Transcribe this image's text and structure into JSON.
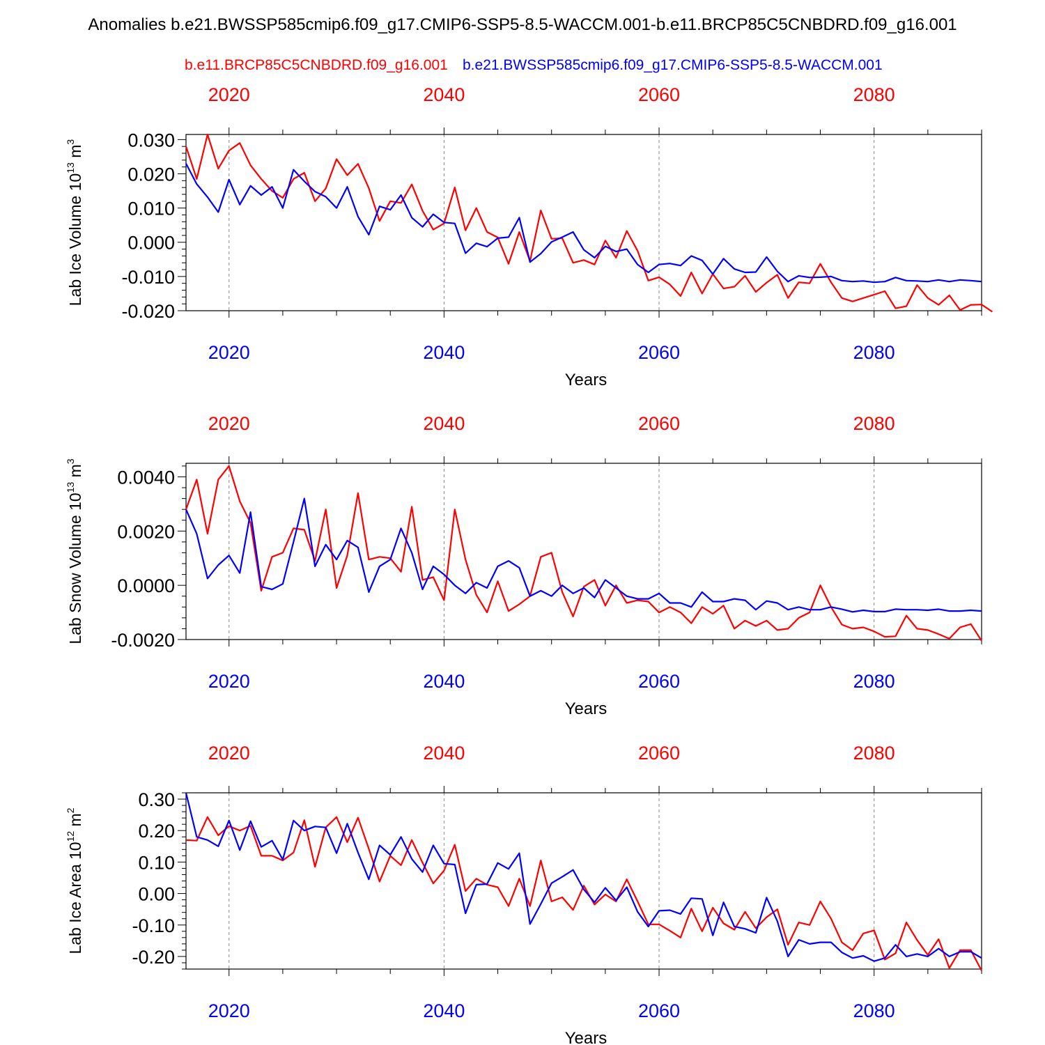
{
  "title": "Anomalies b.e21.BWSSP585cmip6.f09_g17.CMIP6-SSP5-8.5-WACCM.001-b.e11.BRCP85C5CNBDRD.f09_g16.001",
  "colors": {
    "red": "#ff0000",
    "blue": "#0000ff"
  },
  "legend": {
    "red": "b.e11.BRCP85C5CNBDRD.f09_g16.001",
    "blue": "b.e21.BWSSP585cmip6.f09_g17.CMIP6-SSP5-8.5-WACCM.001"
  },
  "chart_data": [
    {
      "type": "line",
      "title": "",
      "ylabel": "Lab Ice Volume",
      "yunit_base": "10",
      "yunit_exp": "13",
      "yunit_tail": "m",
      "yunit_tail_exp": "3",
      "xlabel": "Years",
      "xlim": [
        2016,
        2090
      ],
      "ylim": [
        -0.02,
        0.0315
      ],
      "xticks": [
        2020,
        2040,
        2060,
        2080
      ],
      "xtick_labels": [
        "2020",
        "2040",
        "2060",
        "2080"
      ],
      "yticks": [
        -0.02,
        -0.01,
        0.0,
        0.01,
        0.02,
        0.03
      ],
      "ytick_labels": [
        "-0.020",
        "-0.010",
        "0.000",
        "0.010",
        "0.020",
        "0.030"
      ],
      "x_start": 2016,
      "series": [
        {
          "name": "b.e11.BRCP85C5CNBDRD.f09_g16.001",
          "color": "red",
          "values": [
            0.028,
            0.0185,
            0.0315,
            0.0215,
            0.0268,
            0.029,
            0.0225,
            0.0185,
            0.015,
            0.013,
            0.0185,
            0.0203,
            0.012,
            0.0157,
            0.0243,
            0.0196,
            0.0229,
            0.0158,
            0.0062,
            0.012,
            0.0115,
            0.0169,
            0.0092,
            0.0037,
            0.0055,
            0.016,
            0.0035,
            0.01,
            0.003,
            0.0014,
            -0.0063,
            0.003,
            -0.0055,
            0.0093,
            0.001,
            0.0012,
            -0.006,
            -0.0052,
            -0.0065,
            0.0005,
            -0.0045,
            0.0033,
            -0.0025,
            -0.0112,
            -0.0102,
            -0.0123,
            -0.0157,
            -0.0088,
            -0.015,
            -0.0093,
            -0.0135,
            -0.013,
            -0.0098,
            -0.0145,
            -0.0118,
            -0.0095,
            -0.0163,
            -0.0117,
            -0.012,
            -0.0063,
            -0.0117,
            -0.0163,
            -0.0173,
            -0.0163,
            -0.0153,
            -0.0143,
            -0.0193,
            -0.0187,
            -0.0125,
            -0.0163,
            -0.0183,
            -0.0155,
            -0.0198,
            -0.0183,
            -0.0182,
            -0.0203
          ]
        },
        {
          "name": "b.e21.BWSSP585cmip6.f09_g17.CMIP6-SSP5-8.5-WACCM.001",
          "color": "blue",
          "values": [
            0.023,
            0.017,
            0.0132,
            0.0088,
            0.0183,
            0.011,
            0.0165,
            0.0138,
            0.0162,
            0.01,
            0.0212,
            0.0178,
            0.0148,
            0.0133,
            0.01,
            0.0162,
            0.0075,
            0.0022,
            0.0105,
            0.0095,
            0.0138,
            0.0072,
            0.0045,
            0.0082,
            0.0058,
            0.0055,
            -0.0032,
            -0.0003,
            -0.0013,
            0.0012,
            0.0015,
            0.0072,
            -0.0058,
            -0.0033,
            0.0001,
            0.0015,
            0.003,
            -0.0022,
            -0.0045,
            -0.0012,
            -0.0027,
            -0.002,
            -0.0065,
            -0.0088,
            -0.0065,
            -0.0062,
            -0.0068,
            -0.004,
            -0.0053,
            -0.0093,
            -0.0048,
            -0.0078,
            -0.0088,
            -0.0087,
            -0.0043,
            -0.0085,
            -0.0115,
            -0.0098,
            -0.0103,
            -0.0102,
            -0.01,
            -0.0112,
            -0.0115,
            -0.0113,
            -0.0117,
            -0.0115,
            -0.0103,
            -0.0112,
            -0.0113,
            -0.0115,
            -0.011,
            -0.0115,
            -0.011,
            -0.0112,
            -0.0115
          ]
        }
      ]
    },
    {
      "type": "line",
      "title": "",
      "ylabel": "Lab Snow Volume",
      "yunit_base": "10",
      "yunit_exp": "13",
      "yunit_tail": "m",
      "yunit_tail_exp": "3",
      "xlabel": "Years",
      "xlim": [
        2016,
        2090
      ],
      "ylim": [
        -0.002,
        0.0045
      ],
      "xticks": [
        2020,
        2040,
        2060,
        2080
      ],
      "xtick_labels": [
        "2020",
        "2040",
        "2060",
        "2080"
      ],
      "yticks": [
        -0.002,
        0.0,
        0.002,
        0.004
      ],
      "ytick_labels": [
        "-0.0020",
        "0.0000",
        "0.0020",
        "0.0040"
      ],
      "x_start": 2016,
      "series": [
        {
          "name": "b.e11.BRCP85C5CNBDRD.f09_g16.001",
          "color": "red",
          "values": [
            0.0028,
            0.0039,
            0.0019,
            0.0039,
            0.0044,
            0.0031,
            0.0023,
            -0.0002,
            0.00105,
            0.0012,
            0.0021,
            0.00205,
            0.0009,
            0.0028,
            -0.0001,
            0.0011,
            0.0034,
            0.00095,
            0.00105,
            0.001,
            0.0005,
            0.0029,
            0.0002,
            0.0003,
            -0.00055,
            0.0028,
            0.00095,
            -0.00035,
            -0.001,
            0.00015,
            -0.00095,
            -0.0007,
            -0.0004,
            0.00105,
            0.0012,
            -0.00025,
            -0.00115,
            -5e-05,
            0.0002,
            -0.00075,
            0.0,
            -0.00065,
            -0.00055,
            -0.0006,
            -0.001,
            -0.0008,
            -0.001,
            -0.0014,
            -0.0008,
            -0.00105,
            -0.00075,
            -0.0016,
            -0.0013,
            -0.0015,
            -0.0013,
            -0.00165,
            -0.0016,
            -0.0012,
            -0.001,
            -0.0,
            -0.0008,
            -0.00145,
            -0.0016,
            -0.00155,
            -0.0017,
            -0.0019,
            -0.00188,
            -0.00112,
            -0.0016,
            -0.00165,
            -0.0018,
            -0.00197,
            -0.00155,
            -0.00143,
            -0.00205
          ]
        },
        {
          "name": "b.e21.BWSSP585cmip6.f09_g17.CMIP6-SSP5-8.5-WACCM.001",
          "color": "blue",
          "values": [
            0.0028,
            0.0019,
            0.00025,
            0.00075,
            0.0011,
            0.00045,
            0.0027,
            -5e-05,
            -0.00015,
            5e-05,
            0.0016,
            0.0032,
            0.0007,
            0.0015,
            0.00095,
            0.00165,
            0.0014,
            -0.00025,
            0.0007,
            0.00095,
            0.0021,
            0.0012,
            -0.00015,
            0.0007,
            0.0004,
            0.0,
            -0.0003,
            0.0001,
            -0.0001,
            0.0007,
            0.0009,
            0.00065,
            -0.0004,
            -0.0002,
            -0.0004,
            0.0,
            -0.0003,
            -0.0001,
            -0.00045,
            0.0002,
            -0.0001,
            -0.0004,
            -0.0005,
            -0.0005,
            -0.0003,
            -0.00065,
            -0.00065,
            -0.0008,
            -0.00025,
            -0.0006,
            -0.0006,
            -0.0005,
            -0.00055,
            -0.0009,
            -0.00058,
            -0.00065,
            -0.0009,
            -0.0008,
            -0.0009,
            -0.0009,
            -0.0008,
            -0.00088,
            -0.00098,
            -0.00092,
            -0.00097,
            -0.00097,
            -0.00088,
            -0.0009,
            -0.0009,
            -0.00092,
            -0.00088,
            -0.00095,
            -0.00095,
            -0.00092,
            -0.00095
          ]
        }
      ]
    },
    {
      "type": "line",
      "title": "",
      "ylabel": "Lab Ice Area",
      "yunit_base": "10",
      "yunit_exp": "12",
      "yunit_tail": "m",
      "yunit_tail_exp": "2",
      "xlabel": "Years",
      "xlim": [
        2016,
        2090
      ],
      "ylim": [
        -0.24,
        0.32
      ],
      "xticks": [
        2020,
        2040,
        2060,
        2080
      ],
      "xtick_labels": [
        "2020",
        "2040",
        "2060",
        "2080"
      ],
      "yticks": [
        -0.2,
        -0.1,
        0.0,
        0.1,
        0.2,
        0.3
      ],
      "ytick_labels": [
        "-0.20",
        "-0.10",
        "0.00",
        "0.10",
        "0.20",
        "0.30"
      ],
      "x_start": 2016,
      "series": [
        {
          "name": "b.e11.BRCP85C5CNBDRD.f09_g16.001",
          "color": "red",
          "values": [
            0.17,
            0.168,
            0.243,
            0.185,
            0.214,
            0.2,
            0.215,
            0.12,
            0.12,
            0.105,
            0.13,
            0.233,
            0.085,
            0.21,
            0.243,
            0.163,
            0.241,
            0.142,
            0.038,
            0.12,
            0.09,
            0.17,
            0.098,
            0.032,
            0.073,
            0.155,
            0.008,
            0.047,
            0.028,
            0.02,
            -0.04,
            0.047,
            -0.04,
            0.105,
            -0.025,
            -0.012,
            -0.052,
            0.025,
            -0.035,
            -0.003,
            -0.025,
            0.045,
            -0.025,
            -0.098,
            -0.098,
            -0.118,
            -0.14,
            -0.048,
            -0.12,
            -0.045,
            -0.095,
            -0.115,
            -0.058,
            -0.11,
            -0.075,
            -0.05,
            -0.163,
            -0.092,
            -0.1,
            -0.025,
            -0.08,
            -0.155,
            -0.18,
            -0.127,
            -0.117,
            -0.21,
            -0.19,
            -0.092,
            -0.148,
            -0.195,
            -0.145,
            -0.237,
            -0.18,
            -0.18,
            -0.245
          ]
        },
        {
          "name": "b.e21.BWSSP585cmip6.f09_g17.CMIP6-SSP5-8.5-WACCM.001",
          "color": "blue",
          "values": [
            0.32,
            0.18,
            0.17,
            0.15,
            0.232,
            0.138,
            0.23,
            0.148,
            0.168,
            0.108,
            0.232,
            0.2,
            0.213,
            0.21,
            0.128,
            0.222,
            0.13,
            0.045,
            0.153,
            0.123,
            0.18,
            0.11,
            0.068,
            0.153,
            0.095,
            0.092,
            -0.063,
            0.028,
            0.03,
            0.097,
            0.078,
            0.128,
            -0.097,
            -0.033,
            0.033,
            0.053,
            0.075,
            0.013,
            -0.028,
            0.018,
            -0.022,
            0.02,
            -0.058,
            -0.105,
            -0.055,
            -0.053,
            -0.065,
            -0.015,
            -0.017,
            -0.133,
            -0.028,
            -0.105,
            -0.112,
            -0.125,
            -0.013,
            -0.088,
            -0.2,
            -0.147,
            -0.16,
            -0.155,
            -0.155,
            -0.187,
            -0.205,
            -0.198,
            -0.215,
            -0.205,
            -0.163,
            -0.2,
            -0.192,
            -0.2,
            -0.175,
            -0.2,
            -0.185,
            -0.185,
            -0.205
          ]
        }
      ]
    }
  ]
}
